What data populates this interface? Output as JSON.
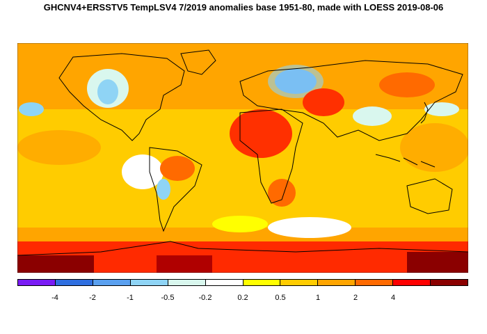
{
  "title": "GHCNV4+ERSSTV5 TempLSV4 7/2019 anomalies base 1951-80, made with LOESS 2019-08-06",
  "legend": {
    "colors": [
      "#7a1cf5",
      "#2f6fe0",
      "#5aa0ef",
      "#8fd4f5",
      "#d9f7ee",
      "#ffffff",
      "#ffff00",
      "#ffcc00",
      "#ffa500",
      "#ff6a00",
      "#ff0000",
      "#8b0000"
    ],
    "tick_labels": [
      "-4",
      "-2",
      "-1",
      "-0.5",
      "-0.2",
      "0.2",
      "0.5",
      "1",
      "2",
      "4"
    ]
  }
}
